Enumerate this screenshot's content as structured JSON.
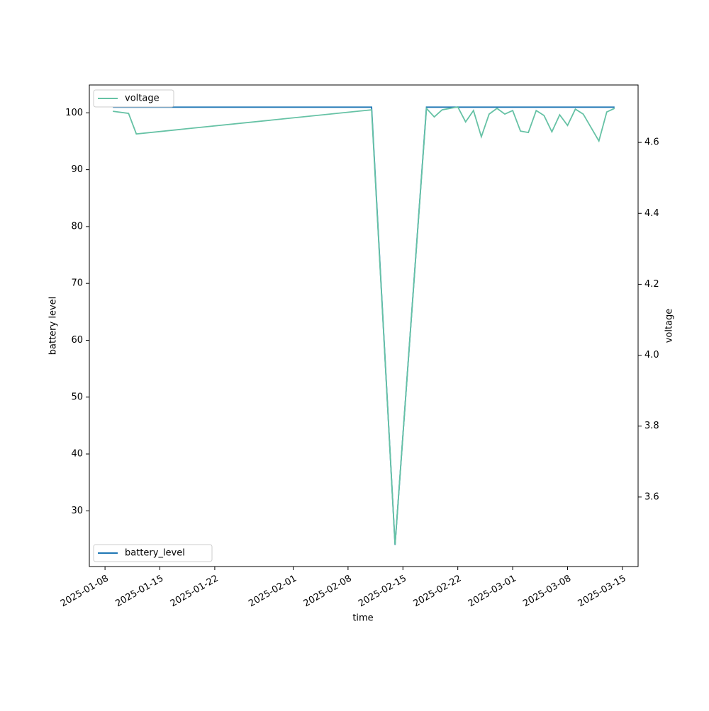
{
  "chart_data": {
    "type": "line",
    "xlabel": "time",
    "ylabel": "battery level",
    "y2label": "voltage",
    "xlim": [
      "2025-01-06",
      "2025-03-17"
    ],
    "xticks": [
      "2025-01-08",
      "2025-01-15",
      "2025-01-22",
      "2025-02-01",
      "2025-02-08",
      "2025-02-15",
      "2025-02-22",
      "2025-03-01",
      "2025-03-08",
      "2025-03-15"
    ],
    "ylim": [
      20.2,
      104.9
    ],
    "yticks": [
      30,
      40,
      50,
      60,
      70,
      80,
      90,
      100
    ],
    "y2lim": [
      3.404,
      4.762
    ],
    "y2ticks": [
      3.6,
      3.8,
      4.0,
      4.2,
      4.4,
      4.6
    ],
    "series": [
      {
        "name": "battery_level",
        "color": "#1f77b4",
        "legend": "lower left",
        "x": [
          "2025-01-09",
          "2025-02-11",
          "2025-02-14",
          "2025-02-18",
          "2025-03-14"
        ],
        "values": [
          101,
          101,
          24,
          101,
          101
        ]
      },
      {
        "name": "voltage",
        "color": "#66c2a5",
        "axis": "y2",
        "legend": "upper left",
        "x": [
          "2025-01-09",
          "2025-01-11",
          "2025-01-12",
          "2025-02-11",
          "2025-02-14",
          "2025-02-18",
          "2025-02-19",
          "2025-02-20",
          "2025-02-22",
          "2025-02-23",
          "2025-02-24",
          "2025-02-25",
          "2025-02-26",
          "2025-02-27",
          "2025-02-28",
          "2025-03-01",
          "2025-03-02",
          "2025-03-03",
          "2025-03-04",
          "2025-03-05",
          "2025-03-06",
          "2025-03-07",
          "2025-03-08",
          "2025-03-09",
          "2025-03-10",
          "2025-03-12",
          "2025-03-13",
          "2025-03-14"
        ],
        "values": [
          4.688,
          4.682,
          4.624,
          4.692,
          3.466,
          4.696,
          4.672,
          4.692,
          4.7,
          4.658,
          4.69,
          4.616,
          4.68,
          4.696,
          4.68,
          4.69,
          4.632,
          4.628,
          4.69,
          4.676,
          4.63,
          4.678,
          4.648,
          4.694,
          4.68,
          4.604,
          4.686,
          4.696
        ]
      }
    ]
  }
}
